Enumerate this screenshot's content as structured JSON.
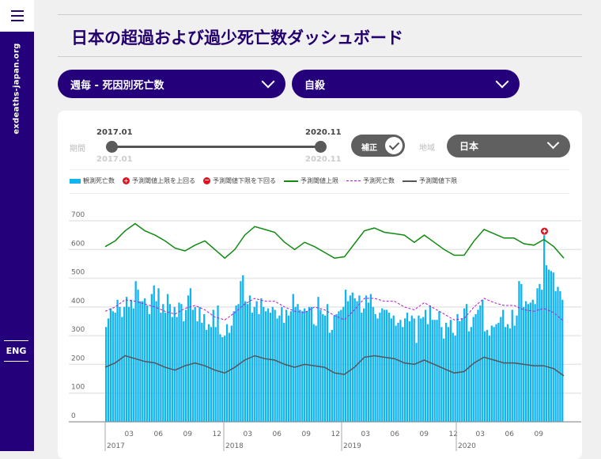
{
  "sidebar": {
    "site": "exdeaths-japan.org",
    "lang": "ENG"
  },
  "header": {
    "title": "日本の超過および過少死亡数ダッシュボード"
  },
  "filters": {
    "dataset": "週毎 - 死因別死亡数",
    "cause": "自殺"
  },
  "controls": {
    "period_label": "期間",
    "start": "2017.01",
    "end": "2020.11",
    "start_sub": "2017.01",
    "end_sub": "2020.11",
    "adjust_label": "補正",
    "adjust_on": true,
    "region_label": "地域",
    "region": "日本"
  },
  "legend": {
    "observed": "観測死亡数",
    "above": "予測閾値上限を上回る",
    "below": "予測閾値下限を下回る",
    "upper": "予測閾値上限",
    "expected": "予測死亡数",
    "lower": "予測閾値下限"
  },
  "colors": {
    "bar": "#0fb4f0",
    "upper": "#118a11",
    "expected": "#b11cd6",
    "lower": "#555555",
    "marker": "#e0101e",
    "brand": "#24007a"
  },
  "chart_data": {
    "type": "bar",
    "ylim": [
      0,
      700
    ],
    "yticks": [
      "0",
      "100",
      "200",
      "300",
      "400",
      "500",
      "600",
      "700"
    ],
    "years": [
      "2017",
      "2018",
      "2019",
      "2020"
    ],
    "month_ticks": [
      "03",
      "06",
      "09",
      "12"
    ],
    "month_ticks_2020": [
      "03",
      "06",
      "09"
    ],
    "grid": true,
    "observed_weekly": [
      330,
      360,
      395,
      385,
      380,
      425,
      400,
      365,
      400,
      435,
      400,
      425,
      395,
      490,
      460,
      420,
      420,
      430,
      405,
      375,
      445,
      475,
      420,
      465,
      380,
      410,
      380,
      445,
      410,
      365,
      400,
      365,
      415,
      410,
      350,
      390,
      440,
      465,
      390,
      400,
      350,
      400,
      345,
      375,
      320,
      340,
      330,
      390,
      330,
      405,
      305,
      295,
      300,
      340,
      310,
      335,
      385,
      405,
      410,
      490,
      510,
      420,
      410,
      440,
      380,
      400,
      420,
      375,
      430,
      400,
      385,
      395,
      380,
      400,
      390,
      360,
      370,
      400,
      345,
      390,
      370,
      385,
      445,
      400,
      410,
      390,
      385,
      395,
      385,
      400,
      400,
      340,
      335,
      435,
      390,
      375,
      370,
      410,
      310,
      320,
      370,
      375,
      385,
      390,
      400,
      460,
      420,
      440,
      450,
      430,
      420,
      440,
      380,
      395,
      440,
      415,
      445,
      400,
      375,
      360,
      380,
      395,
      390,
      390,
      380,
      360,
      370,
      335,
      345,
      355,
      330,
      360,
      380,
      350,
      370,
      360,
      275,
      370,
      360,
      365,
      390,
      340,
      405,
      355,
      355,
      355,
      385,
      330,
      290,
      345,
      330,
      355,
      310,
      300,
      375,
      350,
      360,
      395,
      410,
      315,
      330,
      365,
      375,
      390,
      405,
      425,
      315,
      320,
      300,
      335,
      330,
      340,
      345,
      365,
      390,
      330,
      340,
      325,
      390,
      335,
      370,
      490,
      480,
      400,
      420,
      410,
      415,
      425,
      410,
      465,
      480,
      460,
      650,
      545,
      530,
      525,
      520,
      455,
      470,
      455,
      425
    ],
    "upper_monthly": [
      610,
      630,
      665,
      690,
      665,
      650,
      630,
      605,
      595,
      615,
      630,
      600,
      570,
      600,
      650,
      680,
      670,
      660,
      625,
      600,
      625,
      610,
      590,
      570,
      575,
      620,
      665,
      675,
      660,
      655,
      650,
      625,
      650,
      625,
      600,
      580,
      580,
      630,
      670,
      655,
      640,
      640,
      620,
      615,
      635,
      610,
      570
    ],
    "expected_monthly": [
      385,
      400,
      425,
      420,
      410,
      400,
      385,
      375,
      395,
      405,
      390,
      365,
      355,
      380,
      410,
      430,
      420,
      420,
      400,
      385,
      380,
      400,
      390,
      370,
      355,
      390,
      430,
      430,
      420,
      420,
      400,
      390,
      415,
      395,
      375,
      355,
      360,
      400,
      430,
      415,
      405,
      405,
      390,
      385,
      395,
      380,
      350
    ],
    "lower_monthly": [
      190,
      205,
      230,
      220,
      210,
      205,
      190,
      180,
      195,
      205,
      195,
      180,
      170,
      190,
      215,
      230,
      220,
      215,
      200,
      190,
      200,
      195,
      190,
      170,
      165,
      190,
      225,
      230,
      225,
      220,
      205,
      200,
      215,
      200,
      185,
      170,
      175,
      205,
      225,
      215,
      205,
      205,
      200,
      195,
      195,
      185,
      160
    ],
    "above_upper_week_index": [
      192
    ]
  }
}
